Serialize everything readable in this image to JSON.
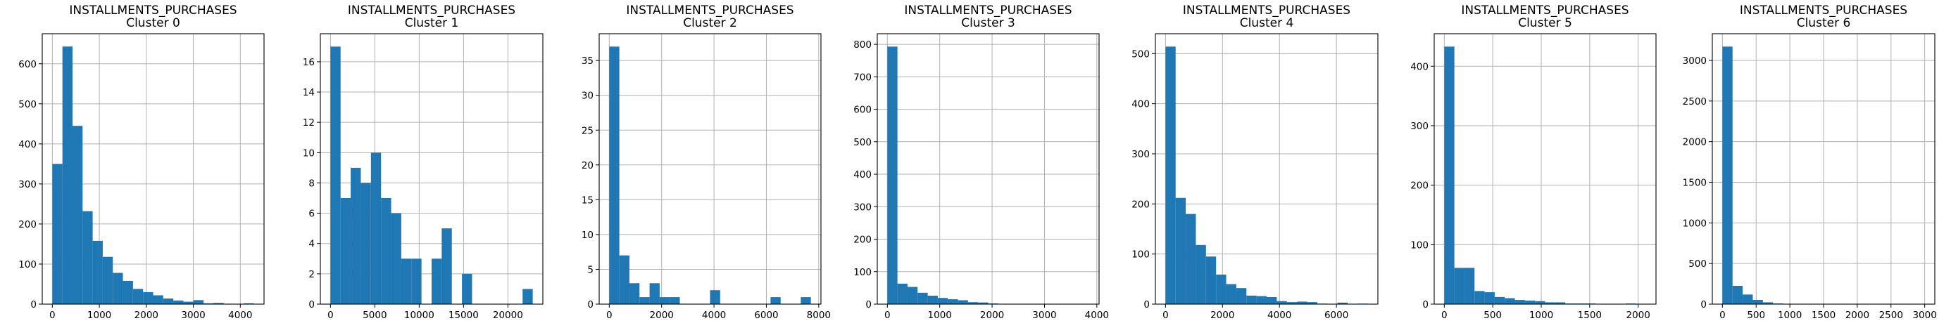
{
  "figure": {
    "bar_color": "#1f77b4",
    "grid_color": "#b0b0b0",
    "background": "#ffffff"
  },
  "chart_data": [
    {
      "type": "bar",
      "title_lines": [
        "INSTALLMENTS_PURCHASES",
        "Cluster 0"
      ],
      "grid": true,
      "bin_edges": [
        0,
        214.5,
        429,
        643.5,
        858,
        1072.5,
        1287,
        1501.5,
        1716,
        1930.5,
        2145,
        2359.5,
        2574,
        2788.5,
        3003,
        3217.5,
        3432,
        3646.5,
        3861,
        4075.5,
        4290
      ],
      "counts": [
        350,
        643,
        445,
        232,
        158,
        118,
        78,
        58,
        38,
        30,
        22,
        14,
        9,
        6,
        10,
        2,
        3,
        1,
        0,
        2
      ],
      "xlim": [
        -215,
        4505
      ],
      "ylim": [
        0,
        675
      ],
      "xticks": [
        0,
        1000,
        2000,
        3000,
        4000
      ],
      "yticks": [
        0,
        100,
        200,
        300,
        400,
        500,
        600
      ]
    },
    {
      "type": "bar",
      "title_lines": [
        "INSTALLMENTS_PURCHASES",
        "Cluster 1"
      ],
      "grid": true,
      "bin_edges": [
        0,
        1140,
        2280,
        3420,
        4560,
        5700,
        6840,
        7980,
        9120,
        10260,
        11400,
        12540,
        13680,
        14820,
        15960,
        17100,
        18240,
        19380,
        20520,
        21660,
        22800
      ],
      "counts": [
        17,
        7,
        9,
        8,
        10,
        7,
        6,
        3,
        3,
        0,
        3,
        5,
        0,
        2,
        0,
        0,
        0,
        0,
        0,
        1
      ],
      "xlim": [
        -1140,
        23940
      ],
      "ylim": [
        0,
        17.85
      ],
      "xticks": [
        0,
        5000,
        10000,
        15000,
        20000
      ],
      "yticks": [
        0,
        2,
        4,
        6,
        8,
        10,
        12,
        14,
        16
      ]
    },
    {
      "type": "bar",
      "title_lines": [
        "INSTALLMENTS_PURCHASES",
        "Cluster 2"
      ],
      "grid": true,
      "bin_edges": [
        0,
        385,
        770,
        1155,
        1540,
        1925,
        2310,
        2695,
        3080,
        3465,
        3850,
        4235,
        4620,
        5005,
        5390,
        5775,
        6160,
        6545,
        6930,
        7315,
        7700
      ],
      "counts": [
        37,
        7,
        3,
        1,
        3,
        1,
        1,
        0,
        0,
        0,
        2,
        0,
        0,
        0,
        0,
        0,
        1,
        0,
        0,
        1
      ],
      "xlim": [
        -385,
        8085
      ],
      "ylim": [
        0,
        38.85
      ],
      "xticks": [
        0,
        2000,
        4000,
        6000,
        8000
      ],
      "yticks": [
        0,
        5,
        10,
        15,
        20,
        25,
        30,
        35
      ]
    },
    {
      "type": "bar",
      "title_lines": [
        "INSTALLMENTS_PURCHASES",
        "Cluster 3"
      ],
      "grid": true,
      "bin_edges": [
        0,
        192.5,
        385,
        577.5,
        770,
        962.5,
        1155,
        1347.5,
        1540,
        1732.5,
        1925,
        2117.5,
        2310,
        2502.5,
        2695,
        2887.5,
        3080,
        3272.5,
        3465,
        3657.5,
        3850
      ],
      "counts": [
        793,
        63,
        53,
        35,
        26,
        19,
        15,
        12,
        6,
        5,
        2,
        1,
        1,
        1,
        1,
        0,
        0,
        0,
        0,
        1
      ],
      "xlim": [
        -192.5,
        4042.5
      ],
      "ylim": [
        0,
        832.65
      ],
      "xticks": [
        0,
        1000,
        2000,
        3000,
        4000
      ],
      "yticks": [
        0,
        100,
        200,
        300,
        400,
        500,
        600,
        700,
        800
      ]
    },
    {
      "type": "bar",
      "title_lines": [
        "INSTALLMENTS_PURCHASES",
        "Cluster 4"
      ],
      "grid": true,
      "bin_edges": [
        0,
        355,
        710,
        1065,
        1420,
        1775,
        2130,
        2485,
        2840,
        3195,
        3550,
        3905,
        4260,
        4615,
        4970,
        5325,
        5680,
        6035,
        6390,
        6745,
        7100
      ],
      "counts": [
        514,
        212,
        180,
        118,
        95,
        59,
        40,
        32,
        17,
        16,
        14,
        6,
        4,
        5,
        4,
        1,
        0,
        3,
        0,
        1
      ],
      "xlim": [
        -355,
        7455
      ],
      "ylim": [
        0,
        539.7
      ],
      "xticks": [
        0,
        2000,
        4000,
        6000
      ],
      "yticks": [
        0,
        100,
        200,
        300,
        400,
        500
      ]
    },
    {
      "type": "bar",
      "title_lines": [
        "INSTALLMENTS_PURCHASES",
        "Cluster 5"
      ],
      "grid": true,
      "bin_edges": [
        0,
        104,
        208,
        312,
        416,
        520,
        624,
        728,
        832,
        936,
        1040,
        1144,
        1248,
        1352,
        1456,
        1560,
        1664,
        1768,
        1872,
        1976,
        2080
      ],
      "counts": [
        433,
        61,
        61,
        22,
        20,
        12,
        10,
        7,
        6,
        5,
        3,
        3,
        1,
        1,
        1,
        0,
        0,
        0,
        1,
        0
      ],
      "xlim": [
        -104,
        2184
      ],
      "ylim": [
        0,
        454.65
      ],
      "xticks": [
        0,
        500,
        1000,
        1500,
        2000
      ],
      "yticks": [
        0,
        100,
        200,
        300,
        400
      ]
    },
    {
      "type": "bar",
      "title_lines": [
        "INSTALLMENTS_PURCHASES",
        "Cluster 6"
      ],
      "grid": true,
      "bin_edges": [
        0,
        150,
        300,
        450,
        600,
        750,
        900,
        1050,
        1200,
        1350,
        1500,
        1650,
        1800,
        1950,
        2100,
        2250,
        2400,
        2550,
        2700,
        2850,
        3000
      ],
      "counts": [
        3170,
        225,
        118,
        52,
        22,
        8,
        4,
        2,
        1,
        1,
        0,
        0,
        0,
        0,
        0,
        0,
        0,
        0,
        0,
        1
      ],
      "xlim": [
        -150,
        3150
      ],
      "ylim": [
        0,
        3328.5
      ],
      "xticks": [
        0,
        500,
        1000,
        1500,
        2000,
        2500,
        3000
      ],
      "yticks": [
        0,
        500,
        1000,
        1500,
        2000,
        2500,
        3000
      ]
    }
  ]
}
